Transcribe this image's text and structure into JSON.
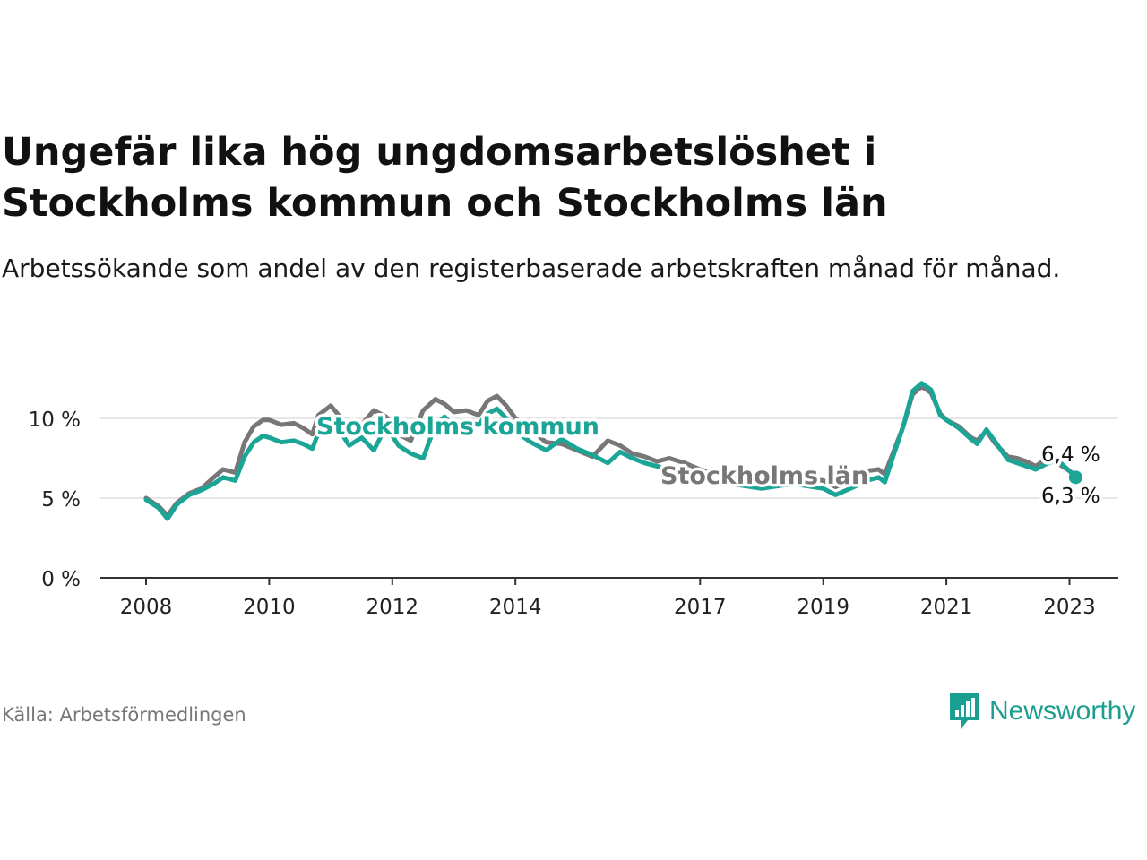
{
  "title": "Ungefär lika hög ungdomsarbetslöshet i Stockholms kommun och Stockholms län",
  "subtitle": "Arbetssökande som andel av den registerbaserade arbetskraften månad för månad.",
  "source": "Källa: Arbetsförmedlingen",
  "brand": "Newsworthy",
  "colors": {
    "kommun": "#1aa597",
    "lan": "#777777",
    "grid": "#dddddd",
    "axis": "#333333",
    "brand": "#1a9e8f"
  },
  "chart_data": {
    "type": "line",
    "title": "Ungefär lika hög ungdomsarbetslöshet i Stockholms kommun och Stockholms län",
    "xlabel": "",
    "ylabel": "",
    "xlim": [
      2008.0,
      2024.0
    ],
    "ylim": [
      0,
      12.5
    ],
    "x_ticks": [
      2008,
      2010,
      2012,
      2014,
      2017,
      2019,
      2021,
      2023
    ],
    "x_tick_labels": [
      "2008",
      "2010",
      "2012",
      "2014",
      "2017",
      "2019",
      "2021",
      "2023"
    ],
    "y_ticks": [
      0,
      5,
      10
    ],
    "y_tick_labels": [
      "0 %",
      "5 %",
      "10 %"
    ],
    "grid": true,
    "series": [
      {
        "name": "Stockholms län",
        "label": "Stockholms län",
        "end_label": "6,4 %",
        "x": [
          2008.0,
          2008.2,
          2008.35,
          2008.5,
          2008.7,
          2008.9,
          2009.1,
          2009.25,
          2009.45,
          2009.6,
          2009.75,
          2009.9,
          2010.0,
          2010.2,
          2010.4,
          2010.55,
          2010.7,
          2010.8,
          2011.0,
          2011.15,
          2011.3,
          2011.5,
          2011.7,
          2011.9,
          2012.1,
          2012.3,
          2012.5,
          2012.7,
          2012.85,
          2013.0,
          2013.2,
          2013.4,
          2013.55,
          2013.7,
          2013.85,
          2014.0,
          2014.25,
          2014.5,
          2014.75,
          2015.0,
          2015.25,
          2015.5,
          2015.7,
          2015.9,
          2016.1,
          2016.3,
          2016.5,
          2016.75,
          2017.0,
          2017.5,
          2018.0,
          2018.5,
          2019.0,
          2019.2,
          2019.5,
          2019.7,
          2019.9,
          2020.0,
          2020.15,
          2020.3,
          2020.45,
          2020.6,
          2020.75,
          2020.9,
          2021.0,
          2021.2,
          2021.4,
          2021.5,
          2021.65,
          2021.8,
          2022.0,
          2022.15,
          2022.3,
          2022.45,
          2022.6,
          2022.8,
          2023.0,
          2023.1
        ],
        "values": [
          5.0,
          4.5,
          3.9,
          4.7,
          5.3,
          5.6,
          6.3,
          6.8,
          6.6,
          8.5,
          9.5,
          9.9,
          9.9,
          9.6,
          9.7,
          9.4,
          9.0,
          10.2,
          10.8,
          10.1,
          9.0,
          9.6,
          10.5,
          10.1,
          9.0,
          8.6,
          10.5,
          11.2,
          10.9,
          10.4,
          10.5,
          10.2,
          11.1,
          11.4,
          10.8,
          10.0,
          9.3,
          8.5,
          8.4,
          8.0,
          7.6,
          8.6,
          8.3,
          7.8,
          7.6,
          7.3,
          7.5,
          7.2,
          6.8,
          6.3,
          6.0,
          6.3,
          6.1,
          5.7,
          6.2,
          6.7,
          6.8,
          6.5,
          8.0,
          9.5,
          11.5,
          12.0,
          11.6,
          10.3,
          9.9,
          9.5,
          8.8,
          8.6,
          9.2,
          8.4,
          7.6,
          7.5,
          7.3,
          7.0,
          7.4,
          7.2,
          6.7,
          6.4
        ]
      },
      {
        "name": "Stockholms kommun",
        "label": "Stockholms kommun",
        "end_label": "6,3 %",
        "x": [
          2008.0,
          2008.2,
          2008.35,
          2008.5,
          2008.7,
          2008.9,
          2009.1,
          2009.25,
          2009.45,
          2009.6,
          2009.75,
          2009.9,
          2010.0,
          2010.2,
          2010.4,
          2010.55,
          2010.7,
          2010.8,
          2011.0,
          2011.15,
          2011.3,
          2011.5,
          2011.7,
          2011.9,
          2012.1,
          2012.3,
          2012.5,
          2012.7,
          2012.85,
          2013.0,
          2013.2,
          2013.4,
          2013.55,
          2013.7,
          2013.85,
          2014.0,
          2014.25,
          2014.5,
          2014.75,
          2015.0,
          2015.25,
          2015.5,
          2015.7,
          2015.9,
          2016.1,
          2016.3,
          2016.5,
          2016.75,
          2017.0,
          2017.5,
          2018.0,
          2018.5,
          2019.0,
          2019.2,
          2019.5,
          2019.7,
          2019.9,
          2020.0,
          2020.15,
          2020.3,
          2020.45,
          2020.6,
          2020.75,
          2020.9,
          2021.0,
          2021.2,
          2021.4,
          2021.5,
          2021.65,
          2021.8,
          2022.0,
          2022.15,
          2022.3,
          2022.45,
          2022.6,
          2022.8,
          2023.0,
          2023.1
        ],
        "values": [
          4.9,
          4.4,
          3.7,
          4.6,
          5.2,
          5.5,
          5.9,
          6.3,
          6.1,
          7.6,
          8.5,
          8.9,
          8.8,
          8.5,
          8.6,
          8.4,
          8.1,
          9.1,
          9.9,
          9.2,
          8.3,
          8.8,
          8.0,
          9.5,
          8.3,
          7.8,
          7.5,
          9.6,
          10.1,
          9.4,
          9.8,
          9.6,
          10.3,
          10.6,
          10.0,
          9.2,
          8.5,
          8.0,
          8.7,
          8.1,
          7.7,
          7.2,
          7.9,
          7.5,
          7.2,
          7.0,
          6.8,
          6.5,
          6.3,
          5.9,
          5.6,
          5.9,
          5.6,
          5.2,
          5.7,
          6.1,
          6.3,
          6.0,
          7.8,
          9.5,
          11.7,
          12.2,
          11.8,
          10.2,
          9.9,
          9.4,
          8.7,
          8.4,
          9.3,
          8.5,
          7.4,
          7.2,
          7.0,
          6.8,
          7.1,
          7.4,
          6.7,
          6.3
        ]
      }
    ]
  }
}
